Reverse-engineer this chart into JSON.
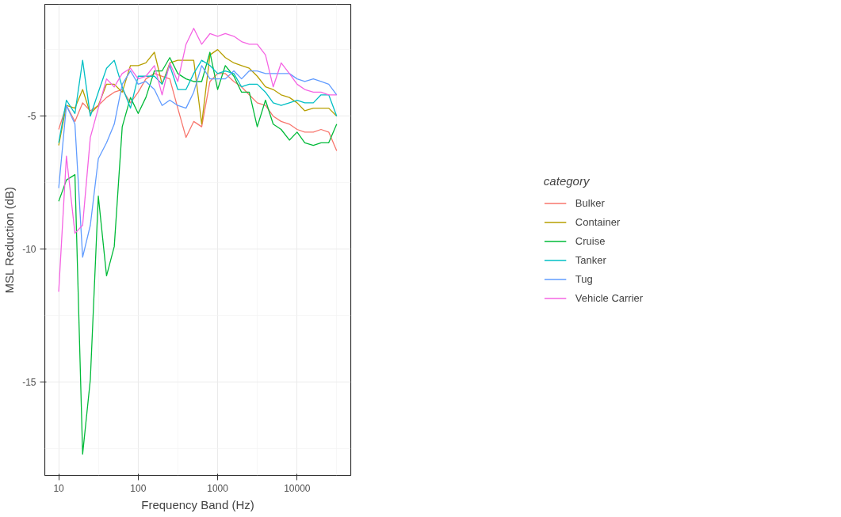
{
  "chart_data": {
    "type": "line",
    "xlabel": "Frequency Band (Hz)",
    "ylabel": "MSL Reduction (dB)",
    "legend_title": "category",
    "legend": "right",
    "grid": true,
    "log": "x",
    "x": [
      10,
      12.5,
      16,
      20,
      25,
      31.5,
      40,
      50,
      63,
      80,
      100,
      125,
      160,
      200,
      250,
      315,
      400,
      500,
      630,
      800,
      1000,
      1250,
      1600,
      2000,
      2500,
      3150,
      4000,
      5000,
      6300,
      8000,
      10000,
      12500,
      16000,
      20000,
      25000,
      31500
    ],
    "xlim": [
      6.68,
      47315
    ],
    "xticks": [
      10,
      100,
      1000,
      10000
    ],
    "ylim": [
      -18.5,
      -0.8
    ],
    "yticks": [
      -15,
      -10,
      -5
    ],
    "series": [
      {
        "name": "Bulker",
        "color": "#F8766D",
        "values": [
          -5.5,
          -4.6,
          -5.2,
          -4.5,
          -4.8,
          -4.6,
          -4.3,
          -4.1,
          -4.0,
          -4.5,
          -4.1,
          -3.6,
          -3.4,
          -3.5,
          -3.6,
          -4.7,
          -5.8,
          -5.2,
          -5.4,
          -3.7,
          -3.4,
          -3.4,
          -3.7,
          -3.9,
          -4.2,
          -4.5,
          -4.6,
          -5.0,
          -5.2,
          -5.3,
          -5.5,
          -5.6,
          -5.6,
          -5.5,
          -5.6,
          -6.3
        ]
      },
      {
        "name": "Container",
        "color": "#B79F00",
        "values": [
          -6.1,
          -4.6,
          -4.7,
          -4.0,
          -4.9,
          -4.6,
          -3.8,
          -3.8,
          -4.1,
          -3.1,
          -3.1,
          -3.0,
          -2.6,
          -3.8,
          -3.0,
          -2.9,
          -2.9,
          -2.9,
          -5.3,
          -2.7,
          -2.5,
          -2.8,
          -3.0,
          -3.1,
          -3.2,
          -3.5,
          -3.9,
          -4.0,
          -4.2,
          -4.3,
          -4.5,
          -4.8,
          -4.7,
          -4.7,
          -4.7,
          -5.0
        ]
      },
      {
        "name": "Cruise",
        "color": "#00BA38",
        "values": [
          -8.2,
          -7.4,
          -7.2,
          -17.7,
          -14.9,
          -8.0,
          -11.0,
          -9.9,
          -5.4,
          -4.3,
          -4.9,
          -4.3,
          -3.3,
          -3.3,
          -2.8,
          -3.4,
          -3.6,
          -3.7,
          -3.7,
          -2.6,
          -4.0,
          -3.1,
          -3.5,
          -4.1,
          -4.1,
          -5.4,
          -4.4,
          -5.3,
          -5.5,
          -5.9,
          -5.6,
          -6.0,
          -6.1,
          -6.0,
          -6.0,
          -5.3
        ]
      },
      {
        "name": "Tanker",
        "color": "#00BFC4",
        "values": [
          -6.0,
          -4.4,
          -4.9,
          -2.9,
          -5.0,
          -4.1,
          -3.2,
          -2.9,
          -3.9,
          -4.7,
          -3.5,
          -3.5,
          -3.5,
          -3.8,
          -3.1,
          -4.0,
          -4.0,
          -3.4,
          -2.9,
          -3.1,
          -3.4,
          -3.3,
          -3.4,
          -3.9,
          -3.8,
          -3.8,
          -4.1,
          -4.5,
          -4.6,
          -4.5,
          -4.4,
          -4.5,
          -4.5,
          -4.2,
          -4.2,
          -5.0
        ]
      },
      {
        "name": "Tug",
        "color": "#619CFF",
        "values": [
          -7.7,
          -4.6,
          -5.3,
          -10.3,
          -9.1,
          -6.6,
          -6.0,
          -5.3,
          -3.8,
          -3.3,
          -3.8,
          -3.7,
          -4.0,
          -4.6,
          -4.4,
          -4.6,
          -4.7,
          -4.1,
          -3.1,
          -3.6,
          -3.6,
          -3.6,
          -3.3,
          -3.6,
          -3.3,
          -3.3,
          -3.4,
          -3.4,
          -3.4,
          -3.4,
          -3.6,
          -3.7,
          -3.6,
          -3.7,
          -3.8,
          -4.2
        ]
      },
      {
        "name": "Vehicle Carrier",
        "color": "#F564E3",
        "values": [
          -11.6,
          -6.5,
          -9.4,
          -9.1,
          -5.8,
          -4.7,
          -3.6,
          -3.9,
          -3.4,
          -3.2,
          -3.6,
          -3.5,
          -3.1,
          -4.2,
          -3.0,
          -3.7,
          -2.3,
          -1.7,
          -2.3,
          -1.9,
          -2.0,
          -1.9,
          -2.0,
          -2.2,
          -2.3,
          -2.3,
          -2.7,
          -3.9,
          -3.0,
          -3.4,
          -3.8,
          -4.0,
          -4.1,
          -4.1,
          -4.2,
          -4.2
        ]
      }
    ]
  }
}
